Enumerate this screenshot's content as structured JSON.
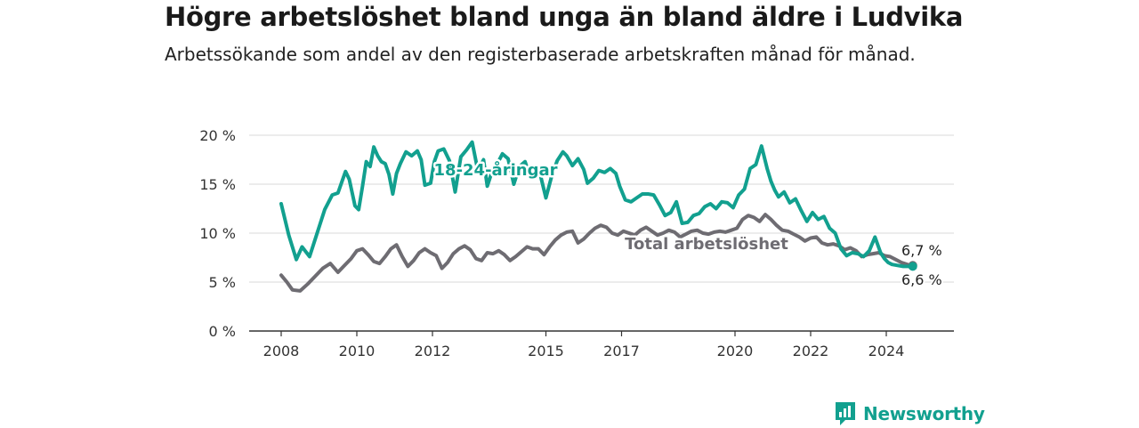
{
  "header": {
    "title": "Högre arbetslöshet bland unga än bland äldre i Ludvika",
    "subtitle": "Arbetssökande som andel av den registerbaserade arbetskraften månad för månad."
  },
  "brand": {
    "name": "Newsworthy",
    "icon": "newsworthy-logo-icon",
    "color": "#12a08f"
  },
  "colors": {
    "youth": "#12a08f",
    "total": "#6e6c72",
    "grid": "#d9d9d9",
    "axis": "#333333"
  },
  "chart_data": {
    "type": "line",
    "title": "Högre arbetslöshet bland unga än bland äldre i Ludvika",
    "subtitle": "Arbetssökande som andel av den registerbaserade arbetskraften månad för månad.",
    "xlim": [
      2008,
      2025
    ],
    "ylim": [
      0,
      20
    ],
    "yticks": [
      0,
      5,
      10,
      15,
      20
    ],
    "ytick_labels": [
      "0 %",
      "5 %",
      "10 %",
      "15 %",
      "20 %"
    ],
    "xtick_labels": [
      "2008",
      "2010",
      "2012",
      "2015",
      "2017",
      "2020",
      "2022",
      "2024"
    ],
    "grid": true,
    "series": [
      {
        "name": "18-24-åringar",
        "color": "#12a08f",
        "end_label": "6,6 %",
        "x": [
          2008.0,
          2008.2,
          2008.4,
          2008.55,
          2008.75,
          2008.95,
          2009.15,
          2009.35,
          2009.5,
          2009.6,
          2009.7,
          2009.8,
          2009.95,
          2010.05,
          2010.15,
          2010.25,
          2010.35,
          2010.45,
          2010.55,
          2010.65,
          2010.75,
          2010.85,
          2010.95,
          2011.05,
          2011.15,
          2011.3,
          2011.45,
          2011.6,
          2011.7,
          2011.8,
          2011.95,
          2012.05,
          2012.15,
          2012.3,
          2012.45,
          2012.6,
          2012.75,
          2012.9,
          2013.05,
          2013.2,
          2013.35,
          2013.45,
          2013.55,
          2013.7,
          2013.85,
          2014.0,
          2014.15,
          2014.3,
          2014.45,
          2014.55,
          2014.7,
          2014.85,
          2015.0,
          2015.15,
          2015.3,
          2015.45,
          2015.55,
          2015.7,
          2015.85,
          2016.0,
          2016.1,
          2016.25,
          2016.4,
          2016.55,
          2016.7,
          2016.85,
          2016.95,
          2017.1,
          2017.25,
          2017.4,
          2017.55,
          2017.7,
          2017.85,
          2018.0,
          2018.15,
          2018.3,
          2018.45,
          2018.6,
          2018.75,
          2018.9,
          2019.05,
          2019.2,
          2019.35,
          2019.5,
          2019.65,
          2019.8,
          2019.95,
          2020.1,
          2020.25,
          2020.4,
          2020.55,
          2020.7,
          2020.85,
          2020.95,
          2021.05,
          2021.15,
          2021.3,
          2021.45,
          2021.6,
          2021.75,
          2021.9,
          2022.05,
          2022.2,
          2022.35,
          2022.5,
          2022.65,
          2022.8,
          2022.95,
          2023.1,
          2023.25,
          2023.4,
          2023.55,
          2023.7,
          2023.85,
          2023.95,
          2024.05,
          2024.15,
          2024.3,
          2024.45,
          2024.6,
          2024.7
        ],
        "y": [
          13.0,
          9.8,
          7.3,
          8.6,
          7.6,
          10.0,
          12.4,
          13.9,
          14.1,
          15.2,
          16.3,
          15.5,
          12.8,
          12.4,
          14.8,
          17.3,
          16.8,
          18.8,
          17.9,
          17.3,
          17.1,
          16.0,
          14.0,
          16.1,
          17.1,
          18.3,
          17.9,
          18.4,
          17.5,
          14.9,
          15.1,
          17.3,
          18.4,
          18.6,
          17.4,
          14.2,
          17.8,
          18.5,
          19.3,
          16.4,
          17.5,
          14.8,
          16.0,
          17.0,
          18.1,
          17.6,
          15.0,
          16.8,
          17.3,
          16.1,
          16.6,
          16.0,
          13.6,
          15.8,
          17.4,
          18.3,
          17.9,
          16.9,
          17.6,
          16.5,
          15.1,
          15.6,
          16.4,
          16.2,
          16.6,
          16.1,
          14.8,
          13.4,
          13.2,
          13.6,
          14.0,
          14.0,
          13.9,
          12.9,
          11.8,
          12.1,
          13.2,
          11.0,
          11.1,
          11.8,
          12.0,
          12.7,
          13.0,
          12.5,
          13.2,
          13.1,
          12.6,
          13.9,
          14.5,
          16.6,
          17.0,
          18.9,
          16.6,
          15.3,
          14.4,
          13.7,
          14.2,
          13.1,
          13.5,
          12.3,
          11.2,
          12.1,
          11.4,
          11.7,
          10.5,
          10.0,
          8.4,
          7.7,
          8.0,
          7.9,
          7.6,
          8.2,
          9.6,
          8.0,
          7.4,
          7.0,
          6.8,
          6.7,
          6.6,
          6.6,
          6.6
        ]
      },
      {
        "name": "Total arbetslöshet",
        "color": "#6e6c72",
        "end_label": "6,7 %",
        "x": [
          2008.0,
          2008.15,
          2008.3,
          2008.5,
          2008.7,
          2008.9,
          2009.1,
          2009.3,
          2009.5,
          2009.65,
          2009.85,
          2010.0,
          2010.15,
          2010.3,
          2010.45,
          2010.6,
          2010.75,
          2010.9,
          2011.05,
          2011.2,
          2011.35,
          2011.5,
          2011.65,
          2011.8,
          2011.95,
          2012.1,
          2012.25,
          2012.4,
          2012.55,
          2012.7,
          2012.85,
          2013.0,
          2013.15,
          2013.3,
          2013.45,
          2013.6,
          2013.75,
          2013.9,
          2014.05,
          2014.2,
          2014.35,
          2014.5,
          2014.65,
          2014.8,
          2014.95,
          2015.1,
          2015.25,
          2015.4,
          2015.55,
          2015.7,
          2015.85,
          2016.0,
          2016.15,
          2016.3,
          2016.45,
          2016.6,
          2016.75,
          2016.9,
          2017.05,
          2017.2,
          2017.35,
          2017.5,
          2017.65,
          2017.8,
          2017.95,
          2018.1,
          2018.25,
          2018.4,
          2018.55,
          2018.7,
          2018.85,
          2019.0,
          2019.15,
          2019.3,
          2019.45,
          2019.6,
          2019.75,
          2019.9,
          2020.05,
          2020.2,
          2020.35,
          2020.5,
          2020.65,
          2020.8,
          2020.95,
          2021.1,
          2021.25,
          2021.4,
          2021.55,
          2021.7,
          2021.85,
          2022.0,
          2022.15,
          2022.3,
          2022.45,
          2022.6,
          2022.75,
          2022.9,
          2023.05,
          2023.2,
          2023.35,
          2023.5,
          2023.65,
          2023.8,
          2023.95,
          2024.1,
          2024.25,
          2024.4,
          2024.55,
          2024.7
        ],
        "y": [
          5.7,
          5.0,
          4.2,
          4.1,
          4.8,
          5.6,
          6.4,
          6.9,
          6.0,
          6.6,
          7.4,
          8.2,
          8.4,
          7.8,
          7.1,
          6.9,
          7.6,
          8.4,
          8.8,
          7.6,
          6.6,
          7.2,
          8.0,
          8.4,
          8.0,
          7.7,
          6.4,
          7.0,
          7.9,
          8.4,
          8.7,
          8.3,
          7.4,
          7.2,
          8.0,
          7.9,
          8.2,
          7.8,
          7.2,
          7.6,
          8.1,
          8.6,
          8.4,
          8.4,
          7.8,
          8.6,
          9.3,
          9.8,
          10.1,
          10.2,
          9.0,
          9.4,
          10.0,
          10.5,
          10.8,
          10.6,
          10.0,
          9.8,
          10.2,
          10.0,
          9.8,
          10.3,
          10.6,
          10.2,
          9.8,
          10.0,
          10.3,
          10.1,
          9.6,
          9.9,
          10.2,
          10.3,
          10.0,
          9.9,
          10.1,
          10.2,
          10.1,
          10.3,
          10.5,
          11.4,
          11.8,
          11.6,
          11.2,
          11.9,
          11.4,
          10.8,
          10.3,
          10.2,
          9.9,
          9.6,
          9.2,
          9.5,
          9.6,
          9.0,
          8.8,
          8.9,
          8.7,
          8.3,
          8.5,
          8.2,
          7.6,
          7.8,
          7.9,
          8.0,
          7.7,
          7.6,
          7.3,
          7.0,
          6.8,
          6.7
        ]
      }
    ]
  }
}
